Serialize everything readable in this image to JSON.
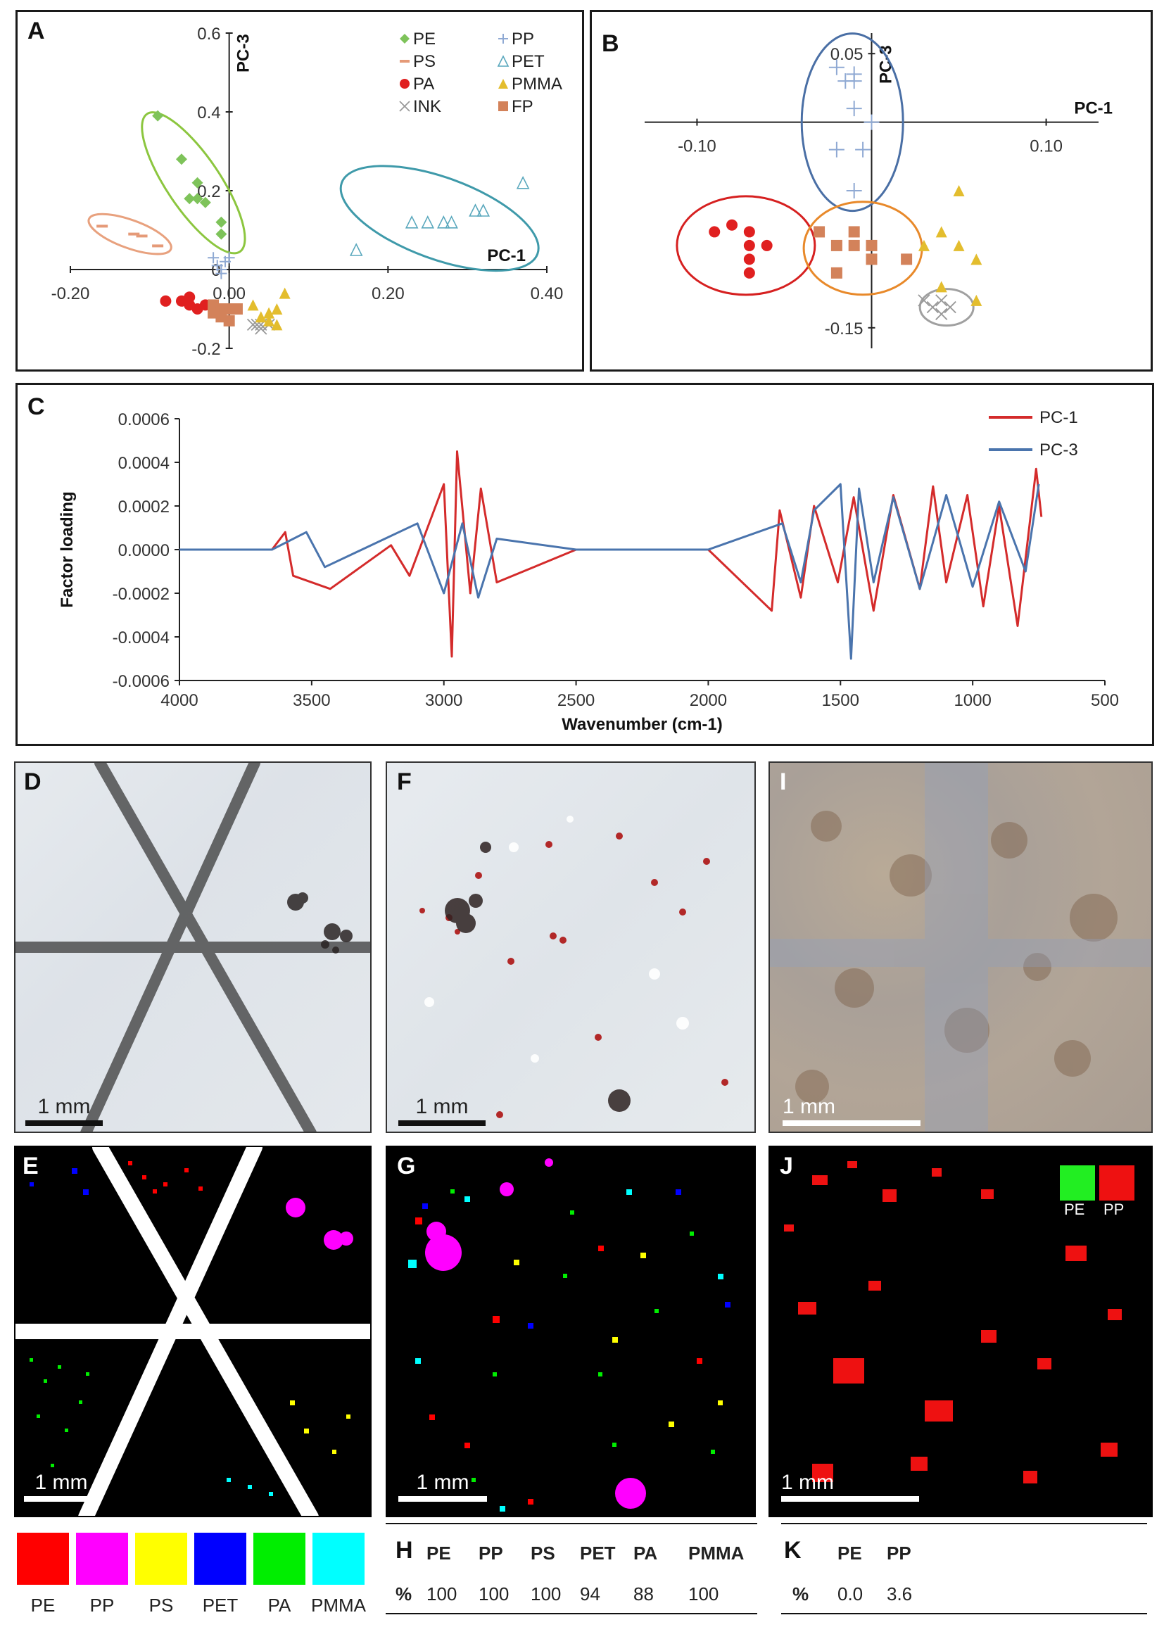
{
  "panels": {
    "A": {
      "label": "A",
      "x_axis_title": "PC-1",
      "y_axis_title": "PC-3",
      "x_ticks": [
        "-0.20",
        "0.00",
        "0.20",
        "0.40"
      ],
      "y_ticks": [
        "0.6",
        "0.4",
        "0.2",
        "0",
        "-0.2"
      ],
      "legend": [
        {
          "label": "PE",
          "marker": "diamond",
          "color": "#7ec35a"
        },
        {
          "label": "PP",
          "marker": "plus",
          "color": "#8fa9d3"
        },
        {
          "label": "PS",
          "marker": "dash",
          "color": "#e59a78"
        },
        {
          "label": "PET",
          "marker": "triangle-open",
          "color": "#5aa8bd"
        },
        {
          "label": "PA",
          "marker": "circle",
          "color": "#e02020"
        },
        {
          "label": "PMMA",
          "marker": "triangle",
          "color": "#e3bd2e"
        },
        {
          "label": "INK",
          "marker": "cross",
          "color": "#999999"
        },
        {
          "label": "FP",
          "marker": "square",
          "color": "#d3825a"
        }
      ]
    },
    "B": {
      "label": "B",
      "x_axis_title": "PC-1",
      "y_axis_title": "PC-3",
      "x_ticks": [
        "-0.10",
        "0.10"
      ],
      "y_ticks": [
        "0.05",
        "-0.15"
      ]
    },
    "C": {
      "label": "C",
      "x_axis_title": "Wavenumber (cm-1)",
      "y_axis_title": "Factor loading",
      "x_ticks": [
        "4000",
        "3500",
        "3000",
        "2500",
        "2000",
        "1500",
        "1000",
        "500"
      ],
      "y_ticks": [
        "0.0006",
        "0.0004",
        "0.0002",
        "0.0000",
        "-0.0002",
        "-0.0004",
        "-0.0006"
      ],
      "legend": [
        {
          "label": "PC-1",
          "color": "#d42b2b"
        },
        {
          "label": "PC-3",
          "color": "#4a74ad"
        }
      ]
    },
    "D": {
      "label": "D",
      "scale": "1 mm"
    },
    "F": {
      "label": "F",
      "scale": "1 mm"
    },
    "I": {
      "label": "I",
      "scale": "1 mm"
    },
    "E": {
      "label": "E",
      "scale": "1 mm"
    },
    "G": {
      "label": "G",
      "scale": "1 mm"
    },
    "J": {
      "label": "J",
      "scale": "1 mm",
      "legend": [
        {
          "label": "PE",
          "color": "#22ee22"
        },
        {
          "label": "PP",
          "color": "#ee1111"
        }
      ]
    }
  },
  "color_legend": [
    {
      "label": "PE",
      "color": "#ff0000"
    },
    {
      "label": "PP",
      "color": "#ff00ff"
    },
    {
      "label": "PS",
      "color": "#ffff00"
    },
    {
      "label": "PET",
      "color": "#0000ff"
    },
    {
      "label": "PA",
      "color": "#00ee00"
    },
    {
      "label": "PMMA",
      "color": "#00ffff"
    }
  ],
  "table_H": {
    "label": "H",
    "headers": [
      "PE",
      "PP",
      "PS",
      "PET",
      "PA",
      "PMMA"
    ],
    "row_label": "%",
    "values": [
      "100",
      "100",
      "100",
      "94",
      "88",
      "100"
    ]
  },
  "table_K": {
    "label": "K",
    "headers": [
      "PE",
      "PP"
    ],
    "row_label": "%",
    "values": [
      "0.0",
      "3.6"
    ]
  },
  "chart_data": [
    {
      "type": "scatter",
      "title": "A",
      "xlabel": "PC-1",
      "ylabel": "PC-3",
      "xlim": [
        -0.2,
        0.4
      ],
      "ylim": [
        -0.2,
        0.6
      ],
      "series": [
        {
          "name": "PE",
          "points": [
            [
              -0.09,
              0.39
            ],
            [
              -0.06,
              0.28
            ],
            [
              -0.04,
              0.22
            ],
            [
              -0.04,
              0.18
            ],
            [
              -0.03,
              0.17
            ],
            [
              -0.05,
              0.18
            ],
            [
              -0.01,
              0.12
            ],
            [
              -0.01,
              0.09
            ]
          ]
        },
        {
          "name": "PS",
          "points": [
            [
              -0.16,
              0.11
            ],
            [
              -0.12,
              0.09
            ],
            [
              -0.11,
              0.085
            ],
            [
              -0.09,
              0.06
            ]
          ]
        },
        {
          "name": "PA",
          "points": [
            [
              -0.08,
              -0.08
            ],
            [
              -0.06,
              -0.08
            ],
            [
              -0.05,
              -0.09
            ],
            [
              -0.04,
              -0.1
            ],
            [
              -0.03,
              -0.09
            ],
            [
              -0.05,
              -0.07
            ]
          ]
        },
        {
          "name": "INK",
          "points": [
            [
              0.03,
              -0.14
            ],
            [
              0.035,
              -0.14
            ],
            [
              0.04,
              -0.15
            ],
            [
              0.04,
              -0.14
            ],
            [
              0.05,
              -0.14
            ]
          ]
        },
        {
          "name": "PP",
          "points": [
            [
              -0.02,
              0.03
            ],
            [
              -0.015,
              0.01
            ],
            [
              -0.01,
              0.0
            ],
            [
              -0.01,
              -0.01
            ],
            [
              -0.005,
              0.02
            ],
            [
              0.0,
              0.03
            ]
          ]
        },
        {
          "name": "PET",
          "points": [
            [
              0.16,
              0.05
            ],
            [
              0.23,
              0.12
            ],
            [
              0.25,
              0.12
            ],
            [
              0.27,
              0.12
            ],
            [
              0.28,
              0.12
            ],
            [
              0.31,
              0.15
            ],
            [
              0.32,
              0.15
            ],
            [
              0.37,
              0.22
            ]
          ]
        },
        {
          "name": "PMMA",
          "points": [
            [
              0.03,
              -0.09
            ],
            [
              0.04,
              -0.12
            ],
            [
              0.05,
              -0.11
            ],
            [
              0.05,
              -0.13
            ],
            [
              0.06,
              -0.1
            ],
            [
              0.07,
              -0.06
            ],
            [
              0.06,
              -0.14
            ]
          ]
        },
        {
          "name": "FP",
          "points": [
            [
              -0.02,
              -0.09
            ],
            [
              -0.01,
              -0.1
            ],
            [
              0.0,
              -0.1
            ],
            [
              -0.01,
              -0.12
            ],
            [
              0.0,
              -0.13
            ],
            [
              -0.02,
              -0.11
            ],
            [
              0.01,
              -0.1
            ]
          ]
        }
      ]
    },
    {
      "type": "scatter",
      "title": "B",
      "xlabel": "PC-1",
      "ylabel": "PC-3",
      "xlim": [
        -0.1,
        0.1
      ],
      "ylim": [
        -0.15,
        0.05
      ],
      "series": [
        {
          "name": "PP",
          "points": [
            [
              -0.02,
              0.04
            ],
            [
              -0.015,
              0.03
            ],
            [
              -0.01,
              0.035
            ],
            [
              -0.01,
              0.03
            ],
            [
              -0.01,
              0.01
            ],
            [
              0.0,
              0.0
            ],
            [
              -0.02,
              -0.02
            ],
            [
              -0.005,
              -0.02
            ],
            [
              -0.01,
              -0.05
            ]
          ]
        },
        {
          "name": "PA",
          "points": [
            [
              -0.09,
              -0.08
            ],
            [
              -0.08,
              -0.075
            ],
            [
              -0.07,
              -0.08
            ],
            [
              -0.07,
              -0.09
            ],
            [
              -0.07,
              -0.1
            ],
            [
              -0.06,
              -0.09
            ],
            [
              -0.07,
              -0.11
            ]
          ]
        },
        {
          "name": "FP",
          "points": [
            [
              -0.03,
              -0.08
            ],
            [
              -0.02,
              -0.09
            ],
            [
              -0.01,
              -0.09
            ],
            [
              -0.01,
              -0.08
            ],
            [
              0.0,
              -0.09
            ],
            [
              0.0,
              -0.1
            ],
            [
              -0.02,
              -0.11
            ],
            [
              0.02,
              -0.1
            ]
          ]
        },
        {
          "name": "PMMA",
          "points": [
            [
              0.05,
              -0.05
            ],
            [
              0.03,
              -0.09
            ],
            [
              0.04,
              -0.08
            ],
            [
              0.05,
              -0.09
            ],
            [
              0.06,
              -0.1
            ],
            [
              0.04,
              -0.12
            ],
            [
              0.06,
              -0.13
            ]
          ]
        },
        {
          "name": "INK",
          "points": [
            [
              0.03,
              -0.13
            ],
            [
              0.035,
              -0.135
            ],
            [
              0.04,
              -0.13
            ],
            [
              0.045,
              -0.135
            ],
            [
              0.04,
              -0.14
            ]
          ]
        }
      ]
    },
    {
      "type": "line",
      "title": "C",
      "xlabel": "Wavenumber (cm-1)",
      "ylabel": "Factor loading",
      "xlim": [
        4000,
        500
      ],
      "ylim": [
        -0.0006,
        0.0006
      ],
      "series": [
        {
          "name": "PC-1",
          "points": [
            [
              4000,
              0.0
            ],
            [
              3650,
              0.0
            ],
            [
              3600,
              8e-05
            ],
            [
              3570,
              -0.00012
            ],
            [
              3430,
              -0.00018
            ],
            [
              3200,
              2e-05
            ],
            [
              3130,
              -0.00012
            ],
            [
              3000,
              0.0003
            ],
            [
              2970,
              -0.00049
            ],
            [
              2950,
              0.00045
            ],
            [
              2900,
              -0.0002
            ],
            [
              2860,
              0.00028
            ],
            [
              2800,
              -0.00015
            ],
            [
              2500,
              0.0
            ],
            [
              2000,
              0.0
            ],
            [
              1760,
              -0.00028
            ],
            [
              1730,
              0.00018
            ],
            [
              1650,
              -0.00022
            ],
            [
              1600,
              0.0002
            ],
            [
              1510,
              -0.00015
            ],
            [
              1450,
              0.00024
            ],
            [
              1375,
              -0.00028
            ],
            [
              1300,
              0.00025
            ],
            [
              1200,
              -0.00018
            ],
            [
              1150,
              0.00029
            ],
            [
              1100,
              -0.00015
            ],
            [
              1020,
              0.00025
            ],
            [
              960,
              -0.00026
            ],
            [
              900,
              0.0002
            ],
            [
              830,
              -0.00035
            ],
            [
              760,
              0.00037
            ],
            [
              740,
              0.00015
            ]
          ]
        },
        {
          "name": "PC-3",
          "points": [
            [
              4000,
              0.0
            ],
            [
              3650,
              0.0
            ],
            [
              3520,
              8e-05
            ],
            [
              3450,
              -8e-05
            ],
            [
              3100,
              0.00012
            ],
            [
              3000,
              -0.0002
            ],
            [
              2930,
              0.00012
            ],
            [
              2870,
              -0.00022
            ],
            [
              2800,
              5e-05
            ],
            [
              2500,
              0.0
            ],
            [
              2000,
              0.0
            ],
            [
              1720,
              0.00012
            ],
            [
              1650,
              -0.00015
            ],
            [
              1600,
              0.00018
            ],
            [
              1500,
              0.0003
            ],
            [
              1460,
              -0.0005
            ],
            [
              1430,
              0.00028
            ],
            [
              1375,
              -0.00015
            ],
            [
              1300,
              0.00024
            ],
            [
              1200,
              -0.00018
            ],
            [
              1100,
              0.00025
            ],
            [
              1000,
              -0.00017
            ],
            [
              900,
              0.00022
            ],
            [
              800,
              -0.0001
            ],
            [
              750,
              0.0003
            ]
          ]
        }
      ]
    }
  ]
}
